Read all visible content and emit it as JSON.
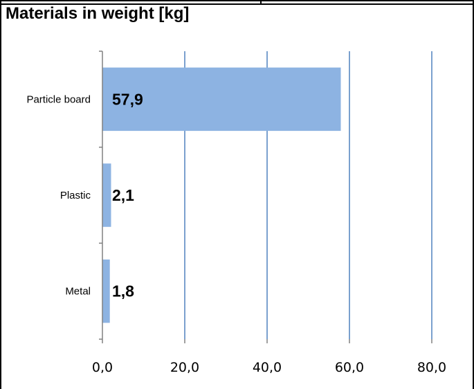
{
  "chart_data": {
    "type": "bar",
    "orientation": "horizontal",
    "title": "Materials in weight [kg]",
    "categories": [
      "Particle board",
      "Plastic",
      "Metal"
    ],
    "values": [
      57.9,
      2.1,
      1.8
    ],
    "data_labels": [
      "57,9",
      "2,1",
      "1,8"
    ],
    "xlim": [
      0,
      80
    ],
    "xticks": [
      0,
      20,
      40,
      60,
      80
    ],
    "xtick_labels": [
      "0,0",
      "20,0",
      "40,0",
      "60,0",
      "80,0"
    ],
    "xlabel": "",
    "ylabel": "",
    "grid": "vertical",
    "legend": "none",
    "colors": {
      "bar": "#8db3e2",
      "gridline": "#4f81bd",
      "axis": "#808080"
    }
  }
}
